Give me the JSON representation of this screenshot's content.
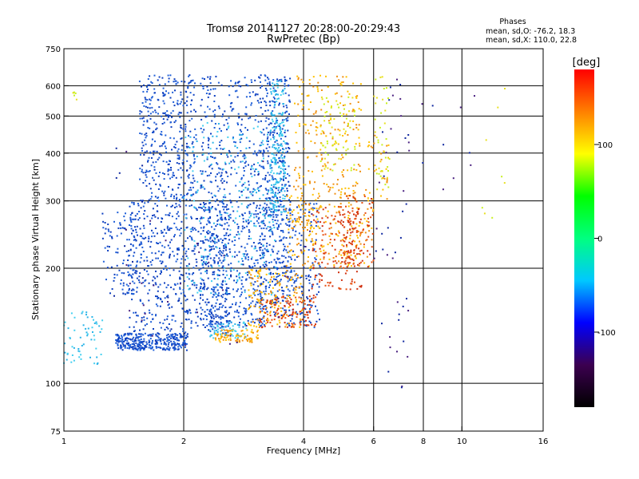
{
  "chart_data": {
    "type": "scatter",
    "title": "Tromsø 20141127 20:28:00-20:29:43",
    "subtitle": "RwPretec (Bp)",
    "xlabel": "Frequency [MHz]",
    "ylabel": "Stationary phase Virtual Height [km]",
    "x_scale": "log",
    "y_scale": "log",
    "xlim": [
      1,
      16
    ],
    "ylim": [
      75,
      750
    ],
    "x_ticks": [
      1,
      2,
      4,
      6,
      8,
      10,
      16
    ],
    "x_tick_labels": [
      "1",
      "2",
      "4",
      "6",
      "8",
      "10",
      "16"
    ],
    "y_ticks": [
      75,
      100,
      200,
      300,
      400,
      500,
      600,
      750
    ],
    "y_tick_labels": [
      "75",
      "100",
      "200",
      "300",
      "400",
      "500",
      "600",
      "750"
    ],
    "x_grid": [
      2,
      4,
      6,
      8,
      10
    ],
    "y_grid": [
      100,
      200,
      300,
      400,
      500,
      600
    ],
    "grid": true,
    "phase_box": {
      "title": "Phases",
      "line_o": "mean, sd,O: -76.2, 18.3",
      "line_x": "mean, sd,X: 110.0, 22.8"
    },
    "colorbar": {
      "label": "[deg]",
      "range": [
        -180,
        180
      ],
      "ticks": [
        100,
        0,
        -100
      ],
      "tick_labels": [
        "100",
        "0",
        "-100"
      ],
      "colormap": [
        "#000000",
        "#3c0050",
        "#0000ff",
        "#00c8ff",
        "#00ff80",
        "#00ff00",
        "#ffff00",
        "#ff8000",
        "#ff0000"
      ]
    },
    "series": [
      {
        "color": "#1f5fd8",
        "color_alt": "#0d3fc0",
        "clusters": [
          {
            "fmin": 1.35,
            "fmax": 2.05,
            "hmin": 122,
            "hmax": 135,
            "n": 320
          },
          {
            "fmin": 1.45,
            "fmax": 2.6,
            "hmin": 135,
            "hmax": 300,
            "n": 620
          },
          {
            "fmin": 1.55,
            "fmax": 2.15,
            "hmin": 300,
            "hmax": 640,
            "n": 380
          },
          {
            "fmin": 2.2,
            "fmax": 3.2,
            "hmin": 140,
            "hmax": 300,
            "n": 420
          },
          {
            "fmin": 2.2,
            "fmax": 3.1,
            "hmin": 300,
            "hmax": 640,
            "n": 260
          },
          {
            "fmin": 3.1,
            "fmax": 3.7,
            "hmin": 150,
            "hmax": 640,
            "n": 480
          },
          {
            "fmin": 3.6,
            "fmax": 4.4,
            "hmin": 140,
            "hmax": 300,
            "n": 160
          },
          {
            "fmin": 1.25,
            "fmax": 1.5,
            "hmin": 170,
            "hmax": 280,
            "n": 90
          }
        ]
      },
      {
        "color": "#2ab4e8",
        "color_alt": "#45d0f0",
        "clusters": [
          {
            "fmin": 1.0,
            "fmax": 1.25,
            "hmin": 112,
            "hmax": 155,
            "n": 60
          },
          {
            "fmin": 2.0,
            "fmax": 3.4,
            "hmin": 170,
            "hmax": 480,
            "n": 220
          },
          {
            "fmin": 3.3,
            "fmax": 3.6,
            "hmin": 280,
            "hmax": 620,
            "n": 200
          },
          {
            "fmin": 2.3,
            "fmax": 2.9,
            "hmin": 130,
            "hmax": 145,
            "n": 60
          }
        ]
      },
      {
        "color": "#f09010",
        "color_alt": "#ffc000",
        "clusters": [
          {
            "fmin": 2.4,
            "fmax": 3.1,
            "hmin": 128,
            "hmax": 138,
            "n": 80
          },
          {
            "fmin": 2.9,
            "fmax": 4.0,
            "hmin": 140,
            "hmax": 200,
            "n": 160
          },
          {
            "fmin": 3.6,
            "fmax": 6.0,
            "hmin": 200,
            "hmax": 330,
            "n": 260
          },
          {
            "fmin": 3.8,
            "fmax": 5.6,
            "hmin": 330,
            "hmax": 640,
            "n": 170
          },
          {
            "fmin": 5.8,
            "fmax": 6.6,
            "hmin": 300,
            "hmax": 450,
            "n": 30
          }
        ]
      },
      {
        "color": "#e85010",
        "color_alt": "#d03010",
        "clusters": [
          {
            "fmin": 3.1,
            "fmax": 4.3,
            "hmin": 140,
            "hmax": 170,
            "n": 110
          },
          {
            "fmin": 4.2,
            "fmax": 5.6,
            "hmin": 175,
            "hmax": 290,
            "n": 160
          },
          {
            "fmin": 5.0,
            "fmax": 6.0,
            "hmin": 200,
            "hmax": 310,
            "n": 80
          }
        ]
      },
      {
        "color": "#e8e020",
        "color_alt": "#c8f020",
        "clusters": [
          {
            "fmin": 1.05,
            "fmax": 1.08,
            "hmin": 540,
            "hmax": 580,
            "n": 6
          },
          {
            "fmin": 4.4,
            "fmax": 5.4,
            "hmin": 360,
            "hmax": 560,
            "n": 70
          },
          {
            "fmin": 6.0,
            "fmax": 6.6,
            "hmin": 320,
            "hmax": 640,
            "n": 40
          },
          {
            "fmin": 11.0,
            "fmax": 13.2,
            "hmin": 270,
            "hmax": 630,
            "n": 8
          }
        ]
      },
      {
        "color": "#4a2080",
        "color_alt": "#1028a0",
        "clusters": [
          {
            "fmin": 1.3,
            "fmax": 4.2,
            "hmin": 125,
            "hmax": 420,
            "n": 70
          },
          {
            "fmin": 6.0,
            "fmax": 7.4,
            "hmin": 95,
            "hmax": 640,
            "n": 45
          },
          {
            "fmin": 7.6,
            "fmax": 11.0,
            "hmin": 300,
            "hmax": 600,
            "n": 10
          }
        ]
      }
    ]
  }
}
